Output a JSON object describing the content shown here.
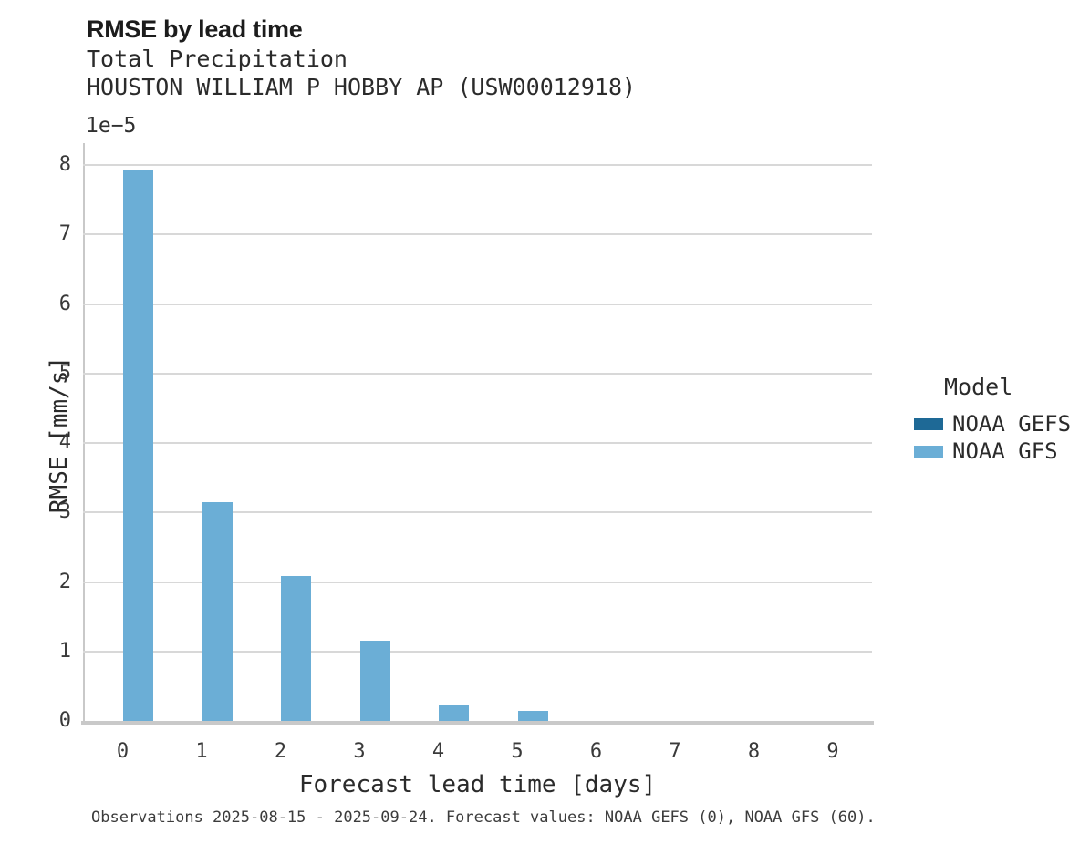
{
  "header": {
    "title": "RMSE by lead time",
    "subtitle1": "Total Precipitation",
    "subtitle2": "HOUSTON WILLIAM P HOBBY AP (USW00012918)"
  },
  "colors": {
    "gefs_dark_blue": "#1e6996",
    "gfs_light_blue": "#6baed6",
    "gridline_gray": "#d8d8d8",
    "spine_gray": "#c9c9c9",
    "title_text": "#1c1c1c",
    "tick_text": "#3a3a3a"
  },
  "chart_data": {
    "type": "bar",
    "title": "RMSE by lead time",
    "subtitle": "Total Precipitation — HOUSTON WILLIAM P HOBBY AP (USW00012918)",
    "categories": [
      "0",
      "1",
      "2",
      "3",
      "4",
      "5",
      "6",
      "7",
      "8",
      "9"
    ],
    "series": [
      {
        "name": "NOAA GEFS",
        "color_key": "gefs_dark_blue",
        "values": [
          0,
          0,
          0,
          0,
          0,
          0,
          0,
          0,
          0,
          0
        ]
      },
      {
        "name": "NOAA GFS",
        "color_key": "gfs_light_blue",
        "values": [
          7.92,
          3.15,
          2.09,
          1.16,
          0.22,
          0.15,
          0,
          0,
          0,
          0
        ]
      }
    ],
    "value_scale_note": "values in units of 1e-5 mm/s",
    "offset_label": "1e−5",
    "xlabel": "Forecast lead time [days]",
    "ylabel": "RMSE [mm/s]",
    "ylim": [
      0,
      8.315
    ],
    "yticks": [
      0,
      1,
      2,
      3,
      4,
      5,
      6,
      7,
      8
    ],
    "grid": "horizontal",
    "legend": {
      "title": "Model",
      "position": "right"
    }
  },
  "caption": "Observations 2025-08-15 - 2025-09-24. Forecast values: NOAA GEFS (0), NOAA GFS (60)."
}
